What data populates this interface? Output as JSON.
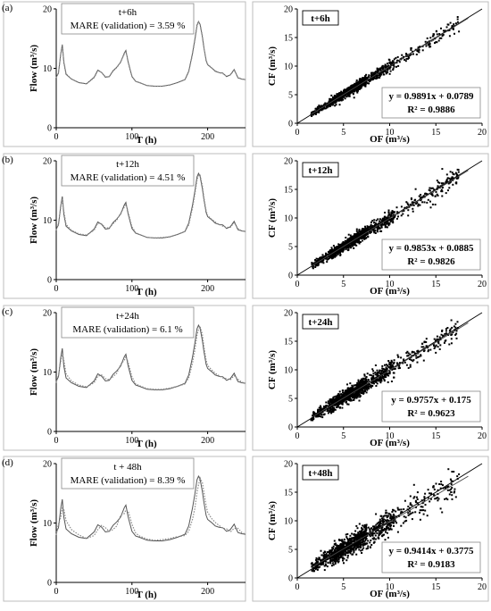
{
  "chart_data": [
    {
      "type": "line",
      "panel_label": "(a)",
      "title": "",
      "xlabel": "T (h)",
      "ylabel": "Flow (m³/s)",
      "annotation_horizon": "t+6h",
      "annotation_mare": "MARE (validation) = 3.59 %",
      "xlim": [
        0,
        250
      ],
      "ylim": [
        0,
        20
      ],
      "xticks": [
        "0",
        "100",
        "200"
      ],
      "yticks": [
        "0",
        "10",
        "20"
      ],
      "grid": false,
      "series": [
        {
          "line_style": "solid",
          "x": [
            0,
            3,
            6,
            8,
            10,
            13,
            20,
            30,
            40,
            50,
            55,
            60,
            65,
            70,
            75,
            80,
            85,
            90,
            92,
            95,
            100,
            105,
            110,
            120,
            130,
            140,
            150,
            160,
            170,
            175,
            180,
            183,
            186,
            188,
            190,
            193,
            195,
            198,
            200,
            205,
            210,
            215,
            220,
            225,
            230,
            235,
            240,
            245,
            250
          ],
          "y": [
            8.5,
            9.2,
            12.5,
            14,
            11,
            9,
            8.2,
            7.6,
            7.4,
            8.5,
            9.7,
            9.3,
            8.5,
            8.6,
            9.6,
            10.2,
            11,
            12.6,
            13,
            11,
            8.6,
            7.8,
            7.6,
            7.1,
            7,
            7,
            7.2,
            7.6,
            8.1,
            9.5,
            12.5,
            14.8,
            17.3,
            17.9,
            17.4,
            15.3,
            13.5,
            11.3,
            10.6,
            10.1,
            9.5,
            9.3,
            9.2,
            8.6,
            8.9,
            9.8,
            8.4,
            8.2,
            8.1
          ]
        },
        {
          "line_style": "dotted",
          "x": [
            0,
            3,
            6,
            8,
            10,
            13,
            20,
            30,
            40,
            50,
            55,
            60,
            65,
            70,
            75,
            80,
            85,
            90,
            92,
            95,
            100,
            105,
            110,
            120,
            130,
            140,
            150,
            160,
            170,
            175,
            180,
            183,
            186,
            188,
            190,
            193,
            195,
            198,
            200,
            205,
            210,
            215,
            220,
            225,
            230,
            235,
            240,
            245,
            250
          ],
          "y": [
            8.4,
            9.3,
            12.4,
            13.8,
            11.2,
            9.1,
            8.2,
            7.6,
            7.4,
            8.4,
            9.6,
            9.3,
            8.6,
            8.6,
            9.5,
            10.1,
            11.1,
            12.4,
            12.9,
            11.1,
            8.7,
            7.8,
            7.6,
            7.1,
            7,
            7,
            7.2,
            7.6,
            8.1,
            9.4,
            12.3,
            14.6,
            17.1,
            17.8,
            17.5,
            15.5,
            13.4,
            11.4,
            10.7,
            10.1,
            9.6,
            9.3,
            9.1,
            8.7,
            8.9,
            9.7,
            8.5,
            8.2,
            8.1
          ]
        }
      ]
    },
    {
      "type": "scatter",
      "panel_label": "",
      "title": "",
      "box_label": "t+6h",
      "xlabel": "OF (m³/s)",
      "ylabel": "CF (m³/s)",
      "xlim": [
        0,
        20
      ],
      "ylim": [
        0,
        20
      ],
      "xticks": [
        "0",
        "5",
        "10",
        "15",
        "20"
      ],
      "yticks": [
        "0",
        "5",
        "10",
        "15",
        "20"
      ],
      "equation": "y = 0.9891x + 0.0789",
      "r2": "R² = 0.9886",
      "slope": 0.9891,
      "intercept": 0.0789,
      "spread": 0.6,
      "n_points": 1100
    },
    {
      "type": "line",
      "panel_label": "(b)",
      "title": "",
      "xlabel": "T (h)",
      "ylabel": "Flow (m³/s)",
      "annotation_horizon": "t+12h",
      "annotation_mare": "MARE (validation) = 4.51 %",
      "xlim": [
        0,
        250
      ],
      "ylim": [
        0,
        20
      ],
      "xticks": [
        "0",
        "100",
        "200"
      ],
      "yticks": [
        "0",
        "10",
        "20"
      ],
      "grid": false,
      "series": [
        {
          "line_style": "solid",
          "x": [
            0,
            3,
            6,
            8,
            10,
            13,
            20,
            30,
            40,
            50,
            55,
            60,
            65,
            70,
            75,
            80,
            85,
            90,
            92,
            95,
            100,
            105,
            110,
            120,
            130,
            140,
            150,
            160,
            170,
            175,
            180,
            183,
            186,
            188,
            190,
            193,
            195,
            198,
            200,
            205,
            210,
            215,
            220,
            225,
            230,
            235,
            240,
            245,
            250
          ],
          "y": [
            8.5,
            9.2,
            12.5,
            14,
            11,
            9,
            8.2,
            7.6,
            7.4,
            8.5,
            9.7,
            9.3,
            8.5,
            8.6,
            9.6,
            10.2,
            11,
            12.6,
            13,
            11,
            8.6,
            7.8,
            7.6,
            7.1,
            7,
            7,
            7.2,
            7.6,
            8.1,
            9.5,
            12.5,
            14.8,
            17.3,
            17.9,
            17.4,
            15.3,
            13.5,
            11.3,
            10.6,
            10.1,
            9.5,
            9.3,
            9.2,
            8.6,
            8.9,
            9.8,
            8.4,
            8.2,
            8.1
          ]
        },
        {
          "line_style": "dotted",
          "x": [
            0,
            3,
            6,
            8,
            10,
            13,
            20,
            30,
            40,
            50,
            55,
            60,
            65,
            70,
            75,
            80,
            85,
            90,
            92,
            95,
            100,
            105,
            110,
            120,
            130,
            140,
            150,
            160,
            170,
            175,
            180,
            183,
            186,
            188,
            190,
            193,
            195,
            198,
            200,
            205,
            210,
            215,
            220,
            225,
            230,
            235,
            240,
            245,
            250
          ],
          "y": [
            8.3,
            9.4,
            12.2,
            13.6,
            11.5,
            9.3,
            8.3,
            7.7,
            7.5,
            8.3,
            9.5,
            9.4,
            8.7,
            8.7,
            9.4,
            10,
            11.2,
            12.2,
            12.8,
            11.3,
            8.9,
            7.9,
            7.6,
            7.1,
            7,
            7.1,
            7.2,
            7.6,
            8.1,
            9.2,
            12,
            14.3,
            16.8,
            17.6,
            17.6,
            15.8,
            13.8,
            11.6,
            10.8,
            10.2,
            9.7,
            9.3,
            9,
            8.8,
            8.8,
            9.6,
            8.6,
            8.2,
            8.1
          ]
        }
      ]
    },
    {
      "type": "scatter",
      "panel_label": "",
      "title": "",
      "box_label": "t+12h",
      "xlabel": "OF (m³/s)",
      "ylabel": "CF (m³/s)",
      "xlim": [
        0,
        20
      ],
      "ylim": [
        0,
        20
      ],
      "xticks": [
        "0",
        "5",
        "10",
        "15",
        "20"
      ],
      "yticks": [
        "0",
        "5",
        "10",
        "15",
        "20"
      ],
      "equation": "y = 0.9853x + 0.0885",
      "r2": "R² = 0.9826",
      "slope": 0.9853,
      "intercept": 0.0885,
      "spread": 0.75,
      "n_points": 1100
    },
    {
      "type": "line",
      "panel_label": "(c)",
      "title": "",
      "xlabel": "T (h)",
      "ylabel": "Flow (m³/s)",
      "annotation_horizon": "t+24h",
      "annotation_mare": "MARE (validation) = 6.1 %",
      "xlim": [
        0,
        250
      ],
      "ylim": [
        0,
        20
      ],
      "xticks": [
        "0",
        "100",
        "200"
      ],
      "yticks": [
        "0",
        "10",
        "20"
      ],
      "grid": false,
      "series": [
        {
          "line_style": "solid",
          "x": [
            0,
            3,
            6,
            8,
            10,
            13,
            20,
            30,
            40,
            50,
            55,
            60,
            65,
            70,
            75,
            80,
            85,
            90,
            92,
            95,
            100,
            105,
            110,
            120,
            130,
            140,
            150,
            160,
            170,
            175,
            180,
            183,
            186,
            188,
            190,
            193,
            195,
            198,
            200,
            205,
            210,
            215,
            220,
            225,
            230,
            235,
            240,
            245,
            250
          ],
          "y": [
            8.5,
            9.2,
            12.5,
            14,
            11,
            9,
            8.2,
            7.6,
            7.4,
            8.5,
            9.7,
            9.3,
            8.5,
            8.6,
            9.6,
            10.2,
            11,
            12.6,
            13,
            11,
            8.6,
            7.8,
            7.6,
            7.1,
            7,
            7,
            7.2,
            7.6,
            8.1,
            9.5,
            12.5,
            14.8,
            17.3,
            17.9,
            17.4,
            15.3,
            13.5,
            11.3,
            10.6,
            10.1,
            9.5,
            9.3,
            9.2,
            8.6,
            8.9,
            9.8,
            8.4,
            8.2,
            8.1
          ]
        },
        {
          "line_style": "dotted",
          "x": [
            0,
            3,
            6,
            8,
            10,
            13,
            20,
            30,
            40,
            50,
            55,
            60,
            65,
            70,
            75,
            80,
            85,
            90,
            92,
            95,
            100,
            105,
            110,
            120,
            130,
            140,
            150,
            160,
            170,
            175,
            180,
            183,
            186,
            188,
            190,
            193,
            195,
            198,
            200,
            205,
            210,
            215,
            220,
            225,
            230,
            235,
            240,
            245,
            250
          ],
          "y": [
            8.2,
            9.5,
            11.8,
            13.2,
            12,
            9.7,
            8.5,
            7.8,
            7.5,
            8.2,
            9.3,
            9.5,
            8.9,
            8.7,
            9.2,
            9.8,
            11.3,
            12,
            12.6,
            11.6,
            9.2,
            8,
            7.7,
            7.2,
            7.1,
            7.1,
            7.3,
            7.6,
            8,
            9,
            11.5,
            13.6,
            16.2,
            17.2,
            17.7,
            16.3,
            14.3,
            12,
            11.1,
            10.4,
            9.8,
            9.4,
            9,
            8.9,
            8.7,
            9.4,
            8.8,
            8.3,
            8.1
          ]
        }
      ]
    },
    {
      "type": "scatter",
      "panel_label": "",
      "title": "",
      "box_label": "t+24h",
      "xlabel": "OF (m³/s)",
      "ylabel": "CF (m³/s)",
      "xlim": [
        0,
        20
      ],
      "ylim": [
        0,
        20
      ],
      "xticks": [
        "0",
        "5",
        "10",
        "15",
        "20"
      ],
      "yticks": [
        "0",
        "5",
        "10",
        "15",
        "20"
      ],
      "equation": "y = 0.9757x + 0.175",
      "r2": "R² = 0.9623",
      "slope": 0.9757,
      "intercept": 0.175,
      "spread": 1.0,
      "n_points": 1100
    },
    {
      "type": "line",
      "panel_label": "(d)",
      "title": "",
      "xlabel": "T (h)",
      "ylabel": "Flow (m³/s)",
      "annotation_horizon": "t + 48h",
      "annotation_mare": "MARE (validation) = 8.39 %",
      "xlim": [
        0,
        250
      ],
      "ylim": [
        0,
        20
      ],
      "xticks": [
        "0",
        "100",
        "200"
      ],
      "yticks": [
        "0",
        "10",
        "20"
      ],
      "grid": false,
      "series": [
        {
          "line_style": "solid",
          "x": [
            0,
            3,
            6,
            8,
            10,
            13,
            20,
            30,
            40,
            50,
            55,
            60,
            65,
            70,
            75,
            80,
            85,
            90,
            92,
            95,
            100,
            105,
            110,
            120,
            130,
            140,
            150,
            160,
            170,
            175,
            180,
            183,
            186,
            188,
            190,
            193,
            195,
            198,
            200,
            205,
            210,
            215,
            220,
            225,
            230,
            235,
            240,
            245,
            250
          ],
          "y": [
            8.5,
            9.2,
            12.5,
            14,
            11,
            9,
            8.2,
            7.6,
            7.4,
            8.5,
            9.7,
            9.3,
            8.5,
            8.6,
            9.6,
            10.2,
            11,
            12.6,
            13,
            11,
            8.6,
            7.8,
            7.6,
            7.1,
            7,
            7,
            7.2,
            7.6,
            8.1,
            9.5,
            12.5,
            14.8,
            17.3,
            17.9,
            17.4,
            15.3,
            13.5,
            11.3,
            10.6,
            10.1,
            9.5,
            9.3,
            9.2,
            8.6,
            8.9,
            9.8,
            8.4,
            8.2,
            8.1
          ]
        },
        {
          "line_style": "dotted",
          "x": [
            0,
            3,
            6,
            8,
            10,
            13,
            20,
            30,
            40,
            50,
            55,
            60,
            65,
            70,
            75,
            80,
            85,
            90,
            92,
            95,
            100,
            105,
            110,
            120,
            130,
            140,
            150,
            160,
            170,
            175,
            180,
            183,
            186,
            188,
            190,
            193,
            195,
            198,
            200,
            205,
            210,
            215,
            220,
            225,
            230,
            235,
            240,
            245,
            250
          ],
          "y": [
            8,
            9.8,
            11,
            12.5,
            12.3,
            10.4,
            8.9,
            8,
            7.4,
            7.9,
            8.9,
            9.6,
            9.2,
            8.6,
            8.9,
            9.5,
            11.3,
            11.6,
            12.2,
            12,
            9.8,
            8.3,
            7.8,
            7.3,
            7.1,
            7.2,
            7.4,
            7.7,
            7.9,
            8.6,
            10.6,
            12.4,
            15.2,
            16.4,
            17.6,
            16.8,
            15.2,
            12.9,
            11.8,
            10.8,
            10.1,
            9.6,
            9.1,
            9,
            8.5,
            9.1,
            9.1,
            8.4,
            8.1
          ]
        }
      ]
    },
    {
      "type": "scatter",
      "panel_label": "",
      "title": "",
      "box_label": "t+48h",
      "xlabel": "OF (m³/s)",
      "ylabel": "CF (m³/s)",
      "xlim": [
        0,
        20
      ],
      "ylim": [
        0,
        20
      ],
      "xticks": [
        "0",
        "5",
        "10",
        "15",
        "20"
      ],
      "yticks": [
        "0",
        "5",
        "10",
        "15",
        "20"
      ],
      "equation": "y = 0.9414x + 0.3775",
      "r2": "R² = 0.9183",
      "slope": 0.9414,
      "intercept": 0.3775,
      "spread": 1.35,
      "n_points": 1100
    }
  ]
}
